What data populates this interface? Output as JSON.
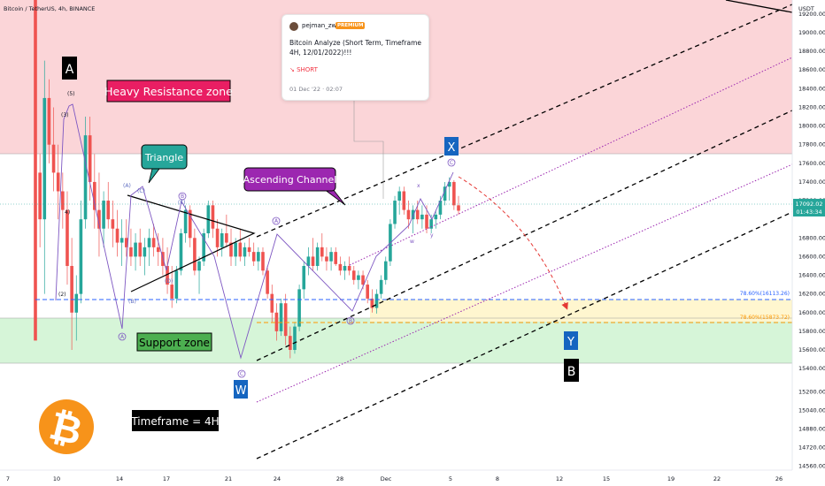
{
  "header": {
    "symbol": "Bitcoin / TetherUS, 4h, BINANCE",
    "currency": "USDT"
  },
  "price_tag": {
    "price": "17092.02",
    "countdown": "01:43:34"
  },
  "idea_card": {
    "author": "pejman_zwin",
    "badge": "PREMIUM",
    "title": "Bitcoin Analyze (Short Term, Timeframe 4H, 12/01/2022)!!!",
    "direction": "↘ SHORT",
    "date": "01 Dec '22 · 02:07"
  },
  "annotations": {
    "heavy_resistance": "Heavy Resistance zone",
    "support": "Support zone",
    "triangle": "Triangle",
    "ascending_channel": "Ascending Channel",
    "timeframe": "Timeframe = 4H",
    "fib_upper": "78.60%(16113.26)",
    "fib_lower": "78.60%(15873.72)",
    "wave_A": "A",
    "wave_B": "B",
    "wave_W": "W",
    "wave_X": "X",
    "wave_Y": "Y",
    "sub_3": "(3)",
    "sub_5": "(5)",
    "sub_2": "(2)",
    "sub_4": "4)",
    "sub_a": "a",
    "sub_b": "b",
    "sub_c": "c",
    "sub_d": "d",
    "sub_e": "e",
    "sub_A": "A",
    "sub_B": "B",
    "sub_C": "C",
    "sub_w": "w",
    "sub_x": "x",
    "sub_y": "y",
    "bitcoin_symbol": "₿"
  },
  "colors": {
    "up": "#26a69a",
    "down": "#ef5350",
    "resistance": "#fbd5d8",
    "support": "#d6f5d8",
    "channel_purple": "#9c27b0",
    "wave_purple": "#7e57c2",
    "fib_blue": "#2962ff",
    "fib_orange": "#ff9800",
    "bitcoin": "#f7931a"
  },
  "chart_data": {
    "type": "candlestick",
    "symbol": "Bitcoin / TetherUS",
    "timeframe": "4h",
    "exchange": "BINANCE",
    "y_axis": {
      "ticks": [
        19200,
        19000,
        18800,
        18600,
        18400,
        18200,
        18000,
        17800,
        17600,
        17400,
        17200,
        16800,
        16600,
        16400,
        16200,
        16000,
        15800,
        15600,
        15400,
        15200,
        15040,
        14880,
        14720,
        14560
      ],
      "labels": [
        "19200.00",
        "19000.00",
        "18800.00",
        "18600.00",
        "18400.00",
        "18200.00",
        "18000.00",
        "17800.00",
        "17600.00",
        "17400.00",
        "17200.00",
        "16800.00",
        "16600.00",
        "16400.00",
        "16200.00",
        "16000.00",
        "15800.00",
        "15600.00",
        "15400.00",
        "15200.00",
        "15040.00",
        "14880.00",
        "14720.00",
        "14560.00"
      ]
    },
    "x_axis_labels": [
      "7",
      "10",
      "14",
      "17",
      "21",
      "24",
      "28",
      "Dec",
      "5",
      "8",
      "12",
      "15",
      "19",
      "22",
      "26"
    ],
    "current_price": 17092.02,
    "zones": [
      {
        "name": "Heavy Resistance zone",
        "from": 17640,
        "to": 19200
      },
      {
        "name": "Support zone",
        "from": 15530,
        "to": 15920
      }
    ],
    "fib_levels": [
      {
        "label": "78.60%(16113.26)",
        "value": 16113.26
      },
      {
        "label": "78.60%(15873.72)",
        "value": 15873.72
      }
    ],
    "candles": [
      [
        21150,
        21150,
        17100,
        17500
      ],
      [
        17500,
        17700,
        16700,
        17000
      ],
      [
        17000,
        18700,
        16200,
        18300
      ],
      [
        18300,
        18500,
        17600,
        17800
      ],
      [
        17800,
        18200,
        17300,
        17500
      ],
      [
        17500,
        17800,
        17000,
        17300
      ],
      [
        17300,
        17500,
        16900,
        17100
      ],
      [
        17100,
        17300,
        16300,
        16500
      ],
      [
        16500,
        16800,
        15600,
        16000
      ],
      [
        16000,
        16400,
        15700,
        16200
      ],
      [
        16200,
        17200,
        16100,
        17000
      ],
      [
        17000,
        18100,
        16900,
        17900
      ],
      [
        17900,
        18100,
        17200,
        17400
      ],
      [
        17400,
        17700,
        16900,
        17100
      ],
      [
        17100,
        17500,
        16600,
        16900
      ],
      [
        16900,
        17300,
        16700,
        17200
      ],
      [
        17200,
        17400,
        16900,
        17000
      ],
      [
        17000,
        17200,
        16700,
        16900
      ],
      [
        16900,
        17100,
        16600,
        16750
      ],
      [
        16750,
        17000,
        16500,
        16800
      ],
      [
        16800,
        17000,
        16600,
        16700
      ],
      [
        16700,
        16900,
        16500,
        16600
      ],
      [
        16600,
        16850,
        16450,
        16750
      ],
      [
        16750,
        16900,
        16500,
        16600
      ],
      [
        16600,
        16800,
        16400,
        16700
      ],
      [
        16700,
        16900,
        16500,
        16800
      ],
      [
        16800,
        16950,
        16600,
        16700
      ],
      [
        16700,
        16850,
        16500,
        16650
      ],
      [
        16650,
        16800,
        16400,
        16500
      ],
      [
        16500,
        16700,
        16200,
        16300
      ],
      [
        16300,
        16500,
        16050,
        16150
      ],
      [
        16150,
        16500,
        16100,
        16450
      ],
      [
        16450,
        16900,
        16400,
        16850
      ],
      [
        16850,
        17150,
        16750,
        17100
      ],
      [
        17100,
        17150,
        16700,
        16800
      ],
      [
        16800,
        16900,
        16400,
        16450
      ],
      [
        16450,
        16600,
        16200,
        16550
      ],
      [
        16550,
        16900,
        16500,
        16850
      ],
      [
        16850,
        17200,
        16800,
        17150
      ],
      [
        17150,
        17200,
        16800,
        16900
      ],
      [
        16900,
        17000,
        16600,
        16700
      ],
      [
        16700,
        16900,
        16600,
        16850
      ],
      [
        16850,
        17050,
        16700,
        16750
      ],
      [
        16750,
        16900,
        16500,
        16600
      ],
      [
        16600,
        16800,
        16500,
        16750
      ],
      [
        16750,
        16900,
        16550,
        16600
      ],
      [
        16600,
        16750,
        16500,
        16700
      ],
      [
        16700,
        16800,
        16600,
        16650
      ],
      [
        16650,
        16750,
        16500,
        16550
      ],
      [
        16550,
        16700,
        16450,
        16650
      ],
      [
        16650,
        16700,
        16400,
        16450
      ],
      [
        16450,
        16500,
        16150,
        16200
      ],
      [
        16200,
        16300,
        15900,
        16000
      ],
      [
        16000,
        16100,
        15700,
        15800
      ],
      [
        15800,
        16150,
        15750,
        16100
      ],
      [
        16100,
        16200,
        15650,
        15750
      ],
      [
        15750,
        15850,
        15510,
        15600
      ],
      [
        15600,
        15900,
        15560,
        15850
      ],
      [
        15850,
        16300,
        15800,
        16250
      ],
      [
        16250,
        16550,
        16150,
        16500
      ],
      [
        16500,
        16700,
        16400,
        16600
      ],
      [
        16600,
        16800,
        16450,
        16500
      ],
      [
        16500,
        16750,
        16450,
        16700
      ],
      [
        16700,
        16850,
        16550,
        16600
      ],
      [
        16600,
        16700,
        16450,
        16550
      ],
      [
        16550,
        16700,
        16450,
        16650
      ],
      [
        16650,
        16700,
        16500,
        16520
      ],
      [
        16520,
        16600,
        16400,
        16450
      ],
      [
        16450,
        16550,
        16350,
        16500
      ],
      [
        16500,
        16600,
        16400,
        16450
      ],
      [
        16450,
        16500,
        16300,
        16350
      ],
      [
        16350,
        16450,
        16250,
        16400
      ],
      [
        16400,
        16450,
        16250,
        16300
      ],
      [
        16300,
        16350,
        16100,
        16150
      ],
      [
        16150,
        16250,
        16000,
        16050
      ],
      [
        16050,
        16250,
        15990,
        16200
      ],
      [
        16200,
        16400,
        16150,
        16350
      ],
      [
        16350,
        16600,
        16300,
        16550
      ],
      [
        16550,
        17000,
        16500,
        16950
      ],
      [
        16950,
        17250,
        16900,
        17200
      ],
      [
        17200,
        17350,
        17050,
        17300
      ],
      [
        17300,
        17350,
        17050,
        17100
      ],
      [
        17100,
        17200,
        16900,
        17000
      ],
      [
        17000,
        17150,
        16850,
        17100
      ],
      [
        17100,
        17200,
        16950,
        17000
      ],
      [
        17000,
        17150,
        16900,
        17050
      ],
      [
        17050,
        17150,
        16850,
        16900
      ],
      [
        16900,
        17050,
        16850,
        17000
      ],
      [
        17000,
        17100,
        16900,
        17050
      ],
      [
        17050,
        17250,
        17000,
        17200
      ],
      [
        17200,
        17400,
        17150,
        17350
      ],
      [
        17350,
        17450,
        17200,
        17400
      ],
      [
        17400,
        17420,
        17100,
        17150
      ],
      [
        17150,
        17250,
        17050,
        17092.02
      ]
    ],
    "projection": {
      "from": [
        17400
      ],
      "to": [
        15880
      ],
      "style": "dashed-arc"
    }
  }
}
